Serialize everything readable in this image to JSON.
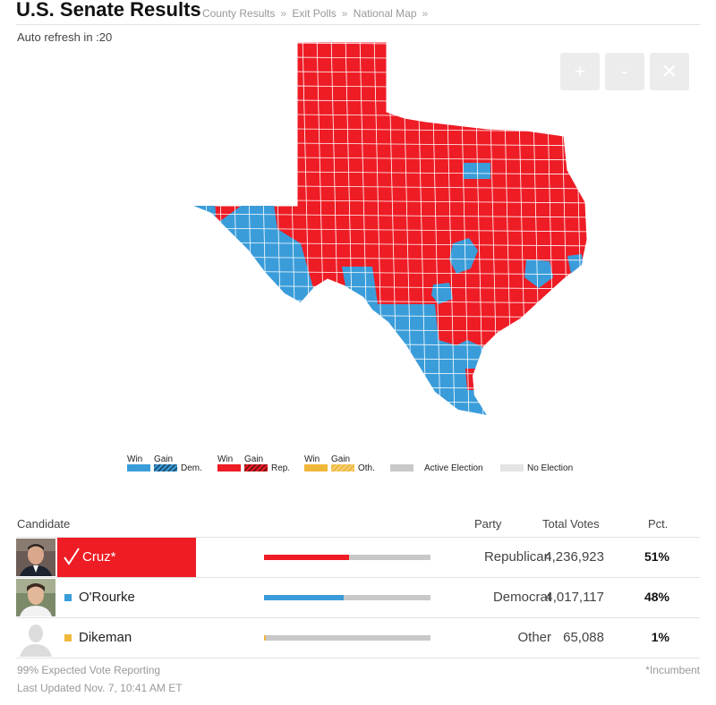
{
  "header": {
    "title": "U.S. Senate Results",
    "links": [
      "County Results",
      "Exit Polls",
      "National Map"
    ],
    "separator": "»"
  },
  "auto_refresh": "Auto refresh in :20",
  "zoom": {
    "in": "+",
    "out": "-",
    "close": "✕"
  },
  "map": {
    "state": "Texas",
    "colors": {
      "rep": "#ee1c25",
      "dem": "#3a9dda",
      "border": "#ffffff"
    }
  },
  "legend": {
    "dem": {
      "win": "Win",
      "gain": "Gain",
      "label": "Dem.",
      "color": "#3a9dda",
      "gain_color": "#1f4f73"
    },
    "rep": {
      "win": "Win",
      "gain": "Gain",
      "label": "Rep.",
      "color": "#ee1c25",
      "gain_color": "#7a1216"
    },
    "oth": {
      "win": "Win",
      "gain": "Gain",
      "label": "Oth.",
      "color": "#f0b83a",
      "gain_color": "#f3cf7a"
    },
    "active": {
      "label": "Active Election",
      "color": "#c8c8c8"
    },
    "none": {
      "label": "No Election",
      "color": "#e4e4e4"
    }
  },
  "table": {
    "headers": {
      "candidate": "Candidate",
      "party": "Party",
      "votes": "Total Votes",
      "pct": "Pct."
    },
    "rows": [
      {
        "name": "Cruz*",
        "party": "Republican",
        "votes": "4,236,923",
        "pct": "51%",
        "share": 0.51,
        "color": "#ee1c25",
        "winner": true
      },
      {
        "name": "O'Rourke",
        "party": "Democrat",
        "votes": "4,017,117",
        "pct": "48%",
        "share": 0.48,
        "color": "#3a9dda",
        "winner": false
      },
      {
        "name": "Dikeman",
        "party": "Other",
        "votes": "65,088",
        "pct": "1%",
        "share": 0.01,
        "color": "#f0b83a",
        "winner": false
      }
    ]
  },
  "footer": {
    "reporting": "99% Expected Vote Reporting",
    "updated": "Last Updated Nov. 7, 10:41 AM ET",
    "incumbent": "*Incumbent"
  }
}
